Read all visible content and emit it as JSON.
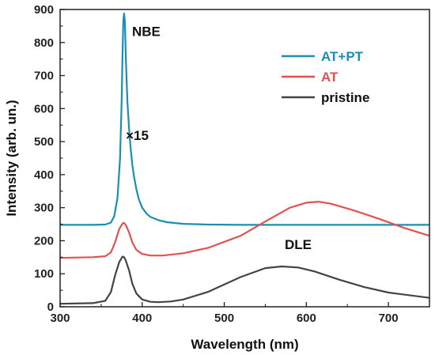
{
  "chart_data": {
    "type": "line",
    "title": "",
    "xlabel": "Wavelength (nm)",
    "ylabel": "Intensity (arb. un.)",
    "xlim": [
      300,
      750
    ],
    "ylim": [
      0,
      900
    ],
    "xticks": [
      300,
      400,
      500,
      600,
      700
    ],
    "yticks": [
      0,
      100,
      200,
      300,
      400,
      500,
      600,
      700,
      800,
      900
    ],
    "grid": false,
    "legend_position": "top-right",
    "annotations": [
      {
        "text": "NBE",
        "x": 405,
        "y": 820
      },
      {
        "text": "DLE",
        "x": 590,
        "y": 175
      },
      {
        "text": "×15",
        "x": 394,
        "y": 505,
        "color": "#1a8fb3"
      }
    ],
    "series": [
      {
        "name": "AT+PT",
        "color": "#1a8fb3",
        "x": [
          300,
          340,
          355,
          362,
          366,
          370,
          373,
          375,
          376,
          377,
          378,
          379,
          380,
          382,
          384,
          386,
          388,
          390,
          393,
          396,
          400,
          405,
          410,
          420,
          430,
          450,
          480,
          520,
          600,
          700,
          750
        ],
        "y": [
          248,
          248,
          249,
          255,
          275,
          330,
          450,
          620,
          760,
          865,
          888,
          860,
          760,
          620,
          540,
          480,
          430,
          395,
          355,
          325,
          300,
          283,
          272,
          262,
          256,
          251,
          249,
          248,
          248,
          248,
          248
        ]
      },
      {
        "name": "AT",
        "color": "#e05252",
        "x": [
          300,
          340,
          355,
          362,
          367,
          372,
          376,
          378,
          380,
          384,
          388,
          393,
          400,
          410,
          425,
          450,
          480,
          520,
          550,
          580,
          600,
          615,
          630,
          660,
          690,
          720,
          750
        ],
        "y": [
          148,
          150,
          153,
          165,
          195,
          235,
          252,
          254,
          248,
          225,
          195,
          172,
          160,
          155,
          155,
          162,
          178,
          215,
          258,
          300,
          315,
          318,
          312,
          290,
          265,
          238,
          215
        ]
      },
      {
        "name": "pristine",
        "color": "#444444",
        "x": [
          300,
          340,
          355,
          362,
          367,
          372,
          376,
          378,
          380,
          384,
          388,
          393,
          400,
          410,
          420,
          435,
          450,
          480,
          520,
          550,
          570,
          590,
          610,
          640,
          670,
          700,
          750
        ],
        "y": [
          9,
          11,
          18,
          45,
          95,
          135,
          152,
          150,
          140,
          110,
          70,
          40,
          22,
          15,
          14,
          16,
          22,
          45,
          90,
          117,
          122,
          119,
          107,
          82,
          60,
          43,
          27
        ]
      }
    ]
  }
}
